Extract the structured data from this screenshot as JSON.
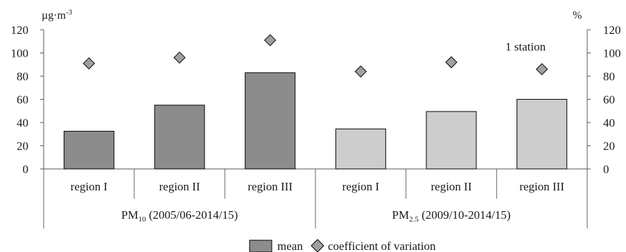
{
  "chart_data": {
    "type": "bar",
    "left_axis": {
      "unit_base": "µg·m",
      "unit_exp": "-3",
      "ylim": [
        0,
        120
      ],
      "ticks": [
        "0",
        "20",
        "40",
        "60",
        "80",
        "100",
        "120"
      ]
    },
    "right_axis": {
      "unit": "%",
      "ylim": [
        0,
        120
      ],
      "ticks": [
        "0",
        "20",
        "40",
        "60",
        "80",
        "100",
        "120"
      ]
    },
    "groups": [
      {
        "label_main": "PM",
        "label_sub": "10",
        "label_rest": " (2005/06-2014/15)",
        "bar_color": "#8c8c8c",
        "categories": [
          "region I",
          "region II",
          "region III"
        ],
        "mean": [
          32.5,
          55,
          83
        ],
        "cv": [
          91,
          96,
          111
        ]
      },
      {
        "label_main": "PM",
        "label_sub": "2.5",
        "label_rest": " (2009/10-2014/15)",
        "bar_color": "#cdcdcd",
        "categories": [
          "region I",
          "region II",
          "region III"
        ],
        "mean": [
          34.5,
          49.5,
          60
        ],
        "cv": [
          84,
          92,
          86
        ]
      }
    ],
    "annotation": "1 station",
    "legend": {
      "mean": "mean",
      "cv": "coefficient of variation",
      "placement": "bottom"
    }
  }
}
